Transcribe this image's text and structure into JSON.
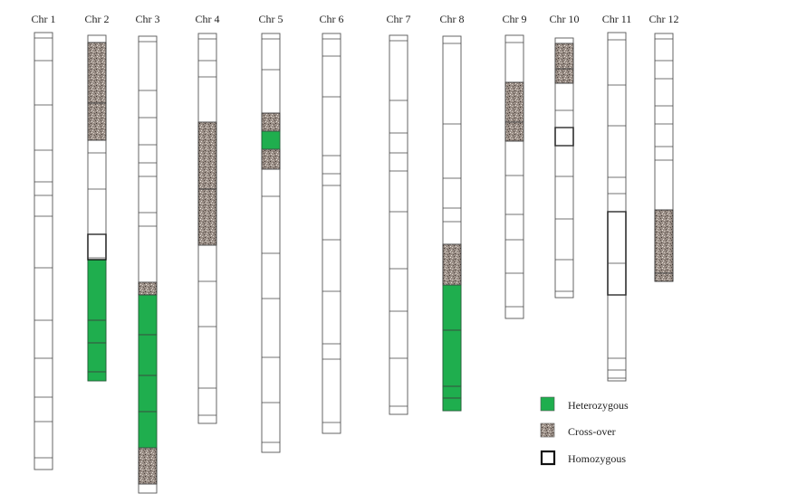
{
  "legend": {
    "heterozygous": "Heterozygous",
    "crossover": "Cross-over",
    "homozygous": "Homozygous"
  },
  "colors": {
    "heterozygous": "#1fae4e",
    "crossover": "#9a8e86",
    "homozygous": "#ffffff",
    "outline": "#555555"
  },
  "chromosomes": [
    {
      "label": "Chr 1",
      "length": 483,
      "divisions": [
        6,
        31,
        80,
        130,
        165,
        180,
        203,
        260,
        318,
        360,
        403,
        430,
        470
      ]
    },
    {
      "label": "Chr 2",
      "length": 382,
      "divisions": [
        8,
        75,
        116,
        130,
        170,
        220,
        246,
        315,
        340,
        372
      ],
      "crossover": [
        [
          8,
          75
        ],
        [
          75,
          116
        ]
      ],
      "heterozygous": [
        [
          248,
          315
        ],
        [
          315,
          340
        ],
        [
          340,
          372
        ],
        [
          372,
          382
        ]
      ],
      "boxes": [
        [
          220,
          248
        ]
      ]
    },
    {
      "label": "Chr 3",
      "length": 505,
      "divisions": [
        6,
        60,
        90,
        120,
        140,
        155,
        195,
        210,
        272,
        286,
        330,
        375,
        415,
        455,
        495
      ],
      "crossover": [
        [
          272,
          286
        ],
        [
          455,
          495
        ]
      ],
      "heterozygous": [
        [
          286,
          330
        ],
        [
          330,
          375
        ],
        [
          375,
          415
        ],
        [
          415,
          455
        ]
      ]
    },
    {
      "label": "Chr 4",
      "length": 431,
      "divisions": [
        6,
        30,
        48,
        98,
        172,
        234,
        274,
        324,
        392,
        422
      ],
      "crossover": [
        [
          98,
          172
        ],
        [
          172,
          234
        ]
      ]
    },
    {
      "label": "Chr 5",
      "length": 463,
      "divisions": [
        6,
        40,
        88,
        108,
        128,
        150,
        180,
        243,
        293,
        358,
        408,
        452
      ],
      "crossover": [
        [
          88,
          108
        ],
        [
          128,
          150
        ]
      ],
      "heterozygous": [
        [
          108,
          128
        ]
      ]
    },
    {
      "label": "Chr 6",
      "length": 442,
      "divisions": [
        6,
        25,
        70,
        135,
        155,
        168,
        228,
        285,
        343,
        360,
        430
      ]
    },
    {
      "label": "Chr 7",
      "length": 419,
      "divisions": [
        6,
        72,
        108,
        130,
        150,
        195,
        258,
        305,
        357,
        410
      ]
    },
    {
      "label": "Chr 8",
      "length": 414,
      "divisions": [
        8,
        97,
        157,
        190,
        205,
        230,
        275,
        325,
        387,
        400
      ],
      "crossover": [
        [
          230,
          275
        ]
      ],
      "heterozygous": [
        [
          275,
          325
        ],
        [
          325,
          387
        ],
        [
          387,
          400
        ],
        [
          400,
          414
        ]
      ]
    },
    {
      "label": "Chr 9",
      "length": 313,
      "divisions": [
        8,
        52,
        96,
        117,
        155,
        198,
        226,
        263,
        300
      ],
      "crossover": [
        [
          52,
          96
        ],
        [
          96,
          117
        ]
      ]
    },
    {
      "label": "Chr 10",
      "length": 287,
      "divisions": [
        6,
        34,
        50,
        80,
        99,
        119,
        153,
        200,
        245,
        280
      ],
      "crossover": [
        [
          6,
          34
        ],
        [
          34,
          50
        ]
      ],
      "boxes": [
        [
          99,
          119
        ]
      ]
    },
    {
      "label": "Chr 11",
      "length": 385,
      "divisions": [
        8,
        58,
        103,
        160,
        178,
        198,
        255,
        290,
        360,
        373,
        382
      ],
      "boxes": [
        [
          198,
          290
        ]
      ]
    },
    {
      "label": "Chr 12",
      "length": 274,
      "divisions": [
        6,
        30,
        50,
        80,
        100,
        125,
        140,
        195,
        265
      ],
      "crossover": [
        [
          195,
          265
        ],
        [
          265,
          274
        ]
      ]
    }
  ]
}
